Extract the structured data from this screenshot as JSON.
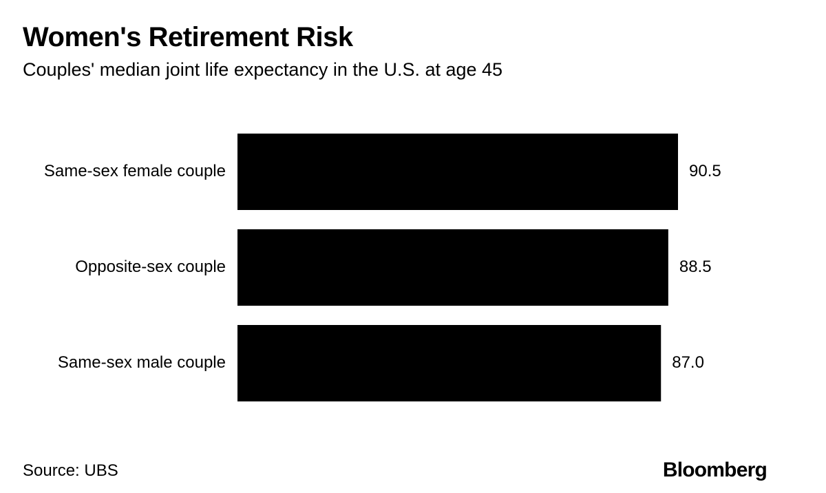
{
  "header": {
    "title": "Women's Retirement Risk",
    "subtitle": "Couples' median joint life expectancy in the U.S. at age 45"
  },
  "footer": {
    "source": "Source: UBS",
    "brand": "Bloomberg"
  },
  "colors": {
    "bar": "#000000",
    "text": "#000000",
    "background": "#ffffff"
  },
  "chart_data": {
    "type": "bar",
    "orientation": "horizontal",
    "categories": [
      "Same-sex female couple",
      "Opposite-sex couple",
      "Same-sex male couple"
    ],
    "values": [
      90.5,
      88.5,
      87.0
    ],
    "value_labels": [
      "90.5",
      "88.5",
      "87.0"
    ],
    "title": "Women's Retirement Risk",
    "subtitle": "Couples' median joint life expectancy in the U.S. at age 45",
    "xlabel": "",
    "ylabel": "",
    "xlim": [
      0,
      90.5
    ],
    "grid": false,
    "legend": "none"
  }
}
